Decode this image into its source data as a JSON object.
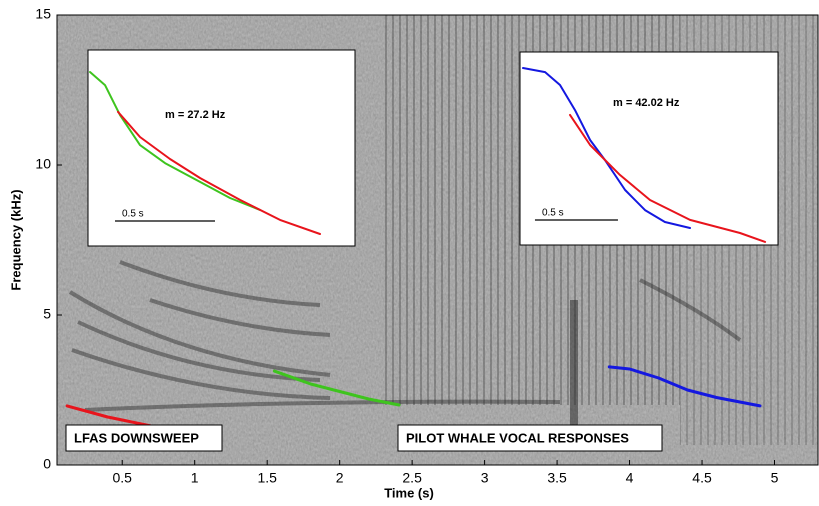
{
  "chart_data": [
    {
      "type": "line",
      "x_label": "Time (s)",
      "y_label": "Frequency (kHz)",
      "xlim": [
        0.05,
        5.3
      ],
      "xticks": [
        0.5,
        1,
        1.5,
        2,
        2.5,
        3,
        3.5,
        4,
        4.5,
        5
      ],
      "ylim": [
        0,
        15
      ],
      "yticks": [
        0,
        5,
        10,
        15
      ],
      "annotations": [
        "LFAS DOWNSWEEP",
        "PILOT WHALE VOCAL RESPONSES"
      ],
      "series": [
        {
          "color": "#e8141c",
          "x": [
            0.12,
            0.4,
            0.7,
            1.0,
            1.16
          ],
          "values": [
            1.97,
            1.6,
            1.3,
            1.08,
            1.0
          ]
        },
        {
          "color": "#3ec41e",
          "x": [
            1.55,
            1.8,
            2.0,
            2.2,
            2.41
          ],
          "values": [
            3.13,
            2.7,
            2.45,
            2.2,
            2.0
          ]
        },
        {
          "color": "#1418e0",
          "x": [
            3.86,
            4.0,
            4.2,
            4.4,
            4.6,
            4.9
          ],
          "values": [
            3.27,
            3.2,
            2.9,
            2.5,
            2.25,
            1.97
          ]
        }
      ]
    },
    {
      "type": "line",
      "xlim": [
        0,
        1.335
      ],
      "ylim": [
        0,
        100
      ],
      "annotation": "m = 27.2 Hz",
      "scale_bar": {
        "x": [
          0.135,
          0.635
        ],
        "label": "0.5 s"
      },
      "series": [
        {
          "color": "#3ec41e",
          "x": [
            0.01,
            0.085,
            0.16,
            0.26,
            0.385,
            0.56,
            0.71,
            0.86
          ],
          "values": [
            88.8,
            82.1,
            66.8,
            51.5,
            42.3,
            32.7,
            24.5,
            18.4
          ]
        },
        {
          "color": "#e8141c",
          "x": [
            0.15,
            0.26,
            0.41,
            0.56,
            0.76,
            0.96,
            1.16
          ],
          "values": [
            68.4,
            55.6,
            44.4,
            34.7,
            23.5,
            13.3,
            6.1
          ]
        }
      ]
    },
    {
      "type": "line",
      "xlim": [
        0,
        1.554
      ],
      "ylim": [
        0,
        100
      ],
      "annotation": "m = 42.02 Hz",
      "scale_bar": {
        "x": [
          0.09,
          0.59
        ],
        "label": "0.5 s"
      },
      "series": [
        {
          "color": "#1418e0",
          "x": [
            0.018,
            0.151,
            0.241,
            0.331,
            0.422,
            0.512,
            0.633,
            0.753,
            0.873,
            1.024
          ],
          "values": [
            91.7,
            89.6,
            82.9,
            69.9,
            54.4,
            44.0,
            28.5,
            18.1,
            11.9,
            8.8
          ]
        },
        {
          "color": "#e8141c",
          "x": [
            0.301,
            0.422,
            0.602,
            0.783,
            1.024,
            1.325,
            1.476
          ],
          "values": [
            67.4,
            51.8,
            36.3,
            23.3,
            13.0,
            6.2,
            1.6
          ]
        }
      ]
    }
  ]
}
